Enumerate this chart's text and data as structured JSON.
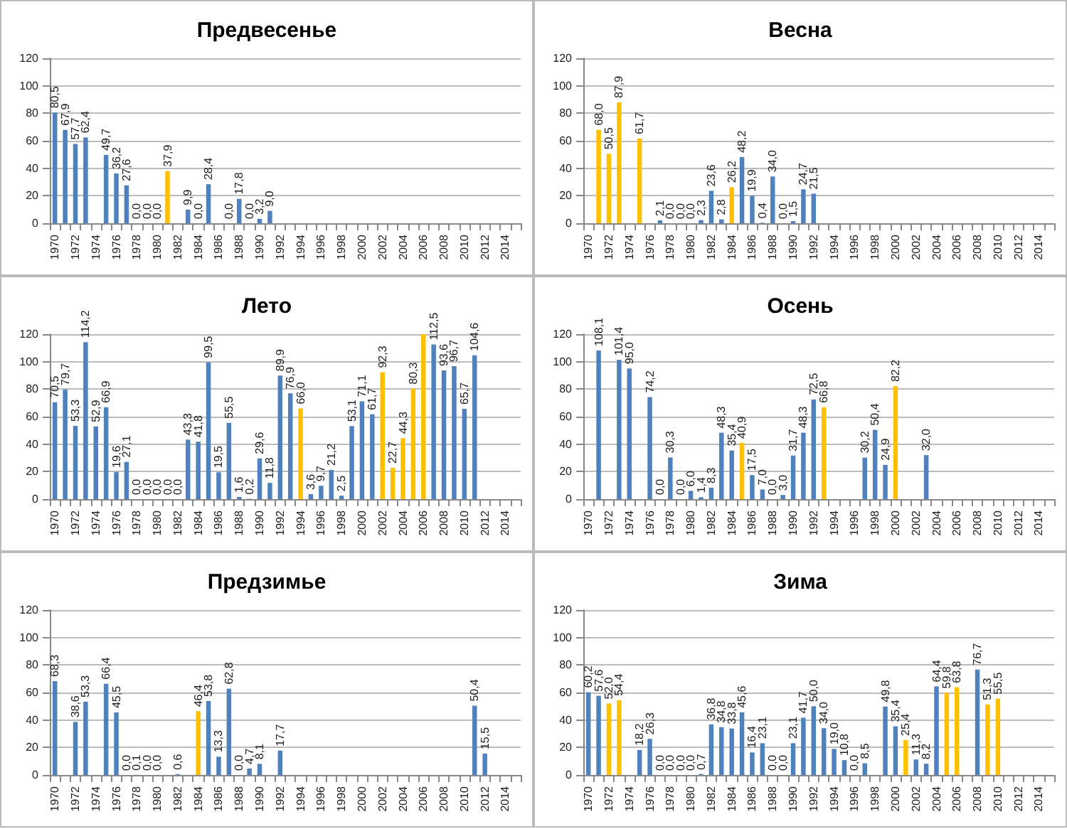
{
  "chart_data": [
    {
      "type": "bar",
      "title": "Предвесенье",
      "categories": [
        "1970",
        null,
        "1972",
        null,
        "1974",
        null,
        "1976",
        null,
        "1978",
        null,
        "1980",
        null,
        "1982",
        null,
        "1984",
        null,
        "1986",
        null,
        "1988",
        null,
        "1990",
        null,
        "1992",
        null,
        "1994",
        null,
        "1996",
        null,
        "1998",
        null,
        "2000",
        null,
        "2002",
        null,
        "2004",
        null,
        "2006",
        null,
        "2008",
        null,
        "2010",
        null,
        "2012",
        null,
        "2014",
        null
      ],
      "ylim": [
        0,
        120
      ],
      "yticks": [
        0,
        20,
        40,
        60,
        80,
        100,
        120
      ],
      "grid": "y",
      "series": [
        {
          "values": [
            80.5,
            67.9,
            57.7,
            62.4,
            null,
            49.7,
            36.2,
            27.6,
            0,
            0,
            0,
            37.9,
            null,
            9.9,
            0,
            28.4,
            null,
            0,
            17.8,
            0,
            3.2,
            9.0,
            null,
            null,
            null,
            null,
            null,
            null,
            null,
            null,
            null,
            null,
            null,
            null,
            null,
            null,
            null,
            null,
            null,
            null,
            null,
            null,
            null,
            null,
            null,
            null
          ],
          "value_labels": [
            "80,5",
            "67,9",
            "57,7",
            "62,4",
            null,
            "49,7",
            "36,2",
            "27,6",
            "0,0",
            "0,0",
            "0,0",
            "37,9",
            null,
            "9,9",
            "0,0",
            "28,4",
            null,
            "0,0",
            "17,8",
            "0,0",
            "3,2",
            "9,0",
            null,
            null,
            null,
            null,
            null,
            null,
            null,
            null,
            null,
            null,
            null,
            null,
            null,
            null,
            null,
            null,
            null,
            null,
            null,
            null,
            null,
            null,
            null,
            null
          ],
          "colors": [
            "#4f81bd",
            "#4f81bd",
            "#4f81bd",
            "#4f81bd",
            null,
            "#4f81bd",
            "#4f81bd",
            "#4f81bd",
            "#4f81bd",
            "#4f81bd",
            "#4f81bd",
            "#ffc000",
            null,
            "#4f81bd",
            "#4f81bd",
            "#4f81bd",
            null,
            "#4f81bd",
            "#4f81bd",
            "#4f81bd",
            "#4f81bd",
            "#4f81bd",
            null,
            null,
            null,
            null,
            null,
            null,
            null,
            null,
            null,
            null,
            null,
            null,
            null,
            null,
            null,
            null,
            null,
            null,
            null,
            null,
            null,
            null,
            null,
            null
          ]
        }
      ]
    },
    {
      "type": "bar",
      "title": "Весна",
      "categories": [
        "1970",
        null,
        "1972",
        null,
        "1974",
        null,
        "1976",
        null,
        "1978",
        null,
        "1980",
        null,
        "1982",
        null,
        "1984",
        null,
        "1986",
        null,
        "1988",
        null,
        "1990",
        null,
        "1992",
        null,
        "1994",
        null,
        "1996",
        null,
        "1998",
        null,
        "2000",
        null,
        "2002",
        null,
        "2004",
        null,
        "2006",
        null,
        "2008",
        null,
        "2010",
        null,
        "2012",
        null,
        "2014",
        null
      ],
      "ylim": [
        0,
        120
      ],
      "yticks": [
        0,
        20,
        40,
        60,
        80,
        100,
        120
      ],
      "grid": "y",
      "series": [
        {
          "values": [
            null,
            68.0,
            50.5,
            87.9,
            null,
            61.7,
            null,
            2.1,
            0,
            0,
            0,
            2.3,
            23.6,
            2.8,
            26.2,
            48.2,
            19.9,
            0.4,
            34.0,
            0,
            1.5,
            24.7,
            21.5,
            null,
            null,
            null,
            null,
            null,
            null,
            null,
            null,
            null,
            null,
            null,
            null,
            null,
            null,
            null,
            null,
            null,
            null,
            null,
            null,
            null,
            null,
            null
          ],
          "value_labels": [
            null,
            "68,0",
            "50,5",
            "87,9",
            null,
            "61,7",
            null,
            "2,1",
            "0,0",
            "0,0",
            "0,0",
            "2,3",
            "23,6",
            "2,8",
            "26,2",
            "48,2",
            "19,9",
            "0,4",
            "34,0",
            "0,0",
            "1,5",
            "24,7",
            "21,5",
            null,
            null,
            null,
            null,
            null,
            null,
            null,
            null,
            null,
            null,
            null,
            null,
            null,
            null,
            null,
            null,
            null,
            null,
            null,
            null,
            null,
            null,
            null
          ],
          "colors": [
            null,
            "#ffc000",
            "#ffc000",
            "#ffc000",
            null,
            "#ffc000",
            null,
            "#4f81bd",
            "#4f81bd",
            "#4f81bd",
            "#4f81bd",
            "#4f81bd",
            "#4f81bd",
            "#4f81bd",
            "#ffc000",
            "#4f81bd",
            "#4f81bd",
            "#4f81bd",
            "#4f81bd",
            "#4f81bd",
            "#4f81bd",
            "#4f81bd",
            "#4f81bd",
            null,
            null,
            null,
            null,
            null,
            null,
            null,
            null,
            null,
            null,
            null,
            null,
            null,
            null,
            null,
            null,
            null,
            null,
            null,
            null,
            null,
            null,
            null
          ]
        }
      ]
    },
    {
      "type": "bar",
      "title": "Лето",
      "categories": [
        "1970",
        null,
        "1972",
        null,
        "1974",
        null,
        "1976",
        null,
        "1978",
        null,
        "1980",
        null,
        "1982",
        null,
        "1984",
        null,
        "1986",
        null,
        "1988",
        null,
        "1990",
        null,
        "1992",
        null,
        "1994",
        null,
        "1996",
        null,
        "1998",
        null,
        "2000",
        null,
        "2002",
        null,
        "2004",
        null,
        "2006",
        null,
        "2008",
        null,
        "2010",
        null,
        "2012",
        null,
        "2014",
        null
      ],
      "ylim": [
        0,
        120
      ],
      "yticks": [
        0,
        20,
        40,
        60,
        80,
        100,
        120
      ],
      "grid": "y",
      "series": [
        {
          "values": [
            70.5,
            79.7,
            53.3,
            114.2,
            52.9,
            66.9,
            19.6,
            27.1,
            0,
            0,
            0,
            0,
            0,
            43.3,
            41.8,
            99.5,
            19.5,
            55.5,
            1.6,
            0.2,
            29.6,
            11.8,
            89.9,
            76.9,
            66.0,
            3.6,
            9.7,
            21.2,
            2.5,
            53.1,
            71.1,
            61.7,
            92.3,
            22.7,
            44.3,
            80.3,
            120,
            112.5,
            93.6,
            96.7,
            65.7,
            104.6,
            null,
            null,
            null,
            null
          ],
          "value_labels": [
            "70,5",
            "79,7",
            "53,3",
            "114,2",
            "52,9",
            "66,9",
            "19,6",
            "27,1",
            "0,0",
            "0,0",
            "0,0",
            "0,0",
            "0,0",
            "43,3",
            "41,8",
            "99,5",
            "19,5",
            "55,5",
            "1,6",
            "0,2",
            "29,6",
            "11,8",
            "89,9",
            "76,9",
            "66,0",
            "3,6",
            "9,7",
            "21,2",
            "2,5",
            "53,1",
            "71,1",
            "61,7",
            "92,3",
            "22,7",
            "44,3",
            "80,3",
            null,
            "112,5",
            "93,6",
            "96,7",
            "65,7",
            "104,6",
            null,
            null,
            null,
            null
          ],
          "colors": [
            "#4f81bd",
            "#4f81bd",
            "#4f81bd",
            "#4f81bd",
            "#4f81bd",
            "#4f81bd",
            "#4f81bd",
            "#4f81bd",
            "#4f81bd",
            "#4f81bd",
            "#4f81bd",
            "#4f81bd",
            "#4f81bd",
            "#4f81bd",
            "#4f81bd",
            "#4f81bd",
            "#4f81bd",
            "#4f81bd",
            "#4f81bd",
            "#4f81bd",
            "#4f81bd",
            "#4f81bd",
            "#4f81bd",
            "#4f81bd",
            "#ffc000",
            "#4f81bd",
            "#4f81bd",
            "#4f81bd",
            "#4f81bd",
            "#4f81bd",
            "#4f81bd",
            "#4f81bd",
            "#ffc000",
            "#ffc000",
            "#ffc000",
            "#ffc000",
            "#ffc000",
            "#4f81bd",
            "#4f81bd",
            "#4f81bd",
            "#4f81bd",
            "#4f81bd",
            null,
            null,
            null,
            null
          ]
        }
      ]
    },
    {
      "type": "bar",
      "title": "Осень",
      "categories": [
        "1970",
        null,
        "1972",
        null,
        "1974",
        null,
        "1976",
        null,
        "1978",
        null,
        "1980",
        null,
        "1982",
        null,
        "1984",
        null,
        "1986",
        null,
        "1988",
        null,
        "1990",
        null,
        "1992",
        null,
        "1994",
        null,
        "1996",
        null,
        "1998",
        null,
        "2000",
        null,
        "2002",
        null,
        "2004",
        null,
        "2006",
        null,
        "2008",
        null,
        "2010",
        null,
        "2012",
        null,
        "2014",
        null
      ],
      "ylim": [
        0,
        120
      ],
      "yticks": [
        0,
        20,
        40,
        60,
        80,
        100,
        120
      ],
      "grid": "y",
      "series": [
        {
          "values": [
            null,
            108.1,
            null,
            101.4,
            95.0,
            null,
            74.2,
            0,
            30.3,
            0,
            6.0,
            1.4,
            8.3,
            48.3,
            35.4,
            40.9,
            17.5,
            7.0,
            0,
            3.0,
            31.7,
            48.3,
            72.5,
            66.8,
            null,
            null,
            null,
            30.2,
            50.4,
            24.9,
            82.2,
            null,
            null,
            32.0,
            null,
            null,
            null,
            null,
            null,
            null,
            null,
            null,
            null,
            null,
            null,
            null
          ],
          "value_labels": [
            null,
            "108,1",
            null,
            "101,4",
            "95,0",
            null,
            "74,2",
            "0,0",
            "30,3",
            "0,0",
            "6,0",
            "1,4",
            "8,3",
            "48,3",
            "35,4",
            "40,9",
            "17,5",
            "7,0",
            "0,0",
            "3,0",
            "31,7",
            "48,3",
            "72,5",
            "66,8",
            null,
            null,
            null,
            "30,2",
            "50,4",
            "24,9",
            "82,2",
            null,
            null,
            "32,0",
            null,
            null,
            null,
            null,
            null,
            null,
            null,
            null,
            null,
            null,
            null,
            null
          ],
          "colors": [
            null,
            "#4f81bd",
            null,
            "#4f81bd",
            "#4f81bd",
            null,
            "#4f81bd",
            "#4f81bd",
            "#4f81bd",
            "#4f81bd",
            "#4f81bd",
            "#4f81bd",
            "#4f81bd",
            "#4f81bd",
            "#4f81bd",
            "#ffc000",
            "#4f81bd",
            "#4f81bd",
            "#4f81bd",
            "#4f81bd",
            "#4f81bd",
            "#4f81bd",
            "#4f81bd",
            "#ffc000",
            null,
            null,
            null,
            "#4f81bd",
            "#4f81bd",
            "#4f81bd",
            "#ffc000",
            null,
            null,
            "#4f81bd",
            null,
            null,
            null,
            null,
            null,
            null,
            null,
            null,
            null,
            null,
            null,
            null
          ]
        }
      ]
    },
    {
      "type": "bar",
      "title": "Предзимье",
      "categories": [
        "1970",
        null,
        "1972",
        null,
        "1974",
        null,
        "1976",
        null,
        "1978",
        null,
        "1980",
        null,
        "1982",
        null,
        "1984",
        null,
        "1986",
        null,
        "1988",
        null,
        "1990",
        null,
        "1992",
        null,
        "1994",
        null,
        "1996",
        null,
        "1998",
        null,
        "2000",
        null,
        "2002",
        null,
        "2004",
        null,
        "2006",
        null,
        "2008",
        null,
        "2010",
        null,
        "2012",
        null,
        "2014",
        null
      ],
      "ylim": [
        0,
        120
      ],
      "yticks": [
        0,
        20,
        40,
        60,
        80,
        100,
        120
      ],
      "grid": "y",
      "series": [
        {
          "values": [
            68.3,
            null,
            38.6,
            53.3,
            null,
            66.4,
            45.5,
            0,
            0.1,
            0,
            0,
            null,
            0.6,
            null,
            46.4,
            53.8,
            13.3,
            62.8,
            0,
            4.7,
            8.1,
            null,
            17.7,
            null,
            null,
            null,
            null,
            null,
            null,
            null,
            null,
            null,
            null,
            null,
            null,
            null,
            null,
            null,
            null,
            null,
            null,
            50.4,
            15.5,
            null,
            null,
            null
          ],
          "value_labels": [
            "68,3",
            null,
            "38,6",
            "53,3",
            null,
            "66,4",
            "45,5",
            "0,0",
            "0,1",
            "0,0",
            "0,0",
            null,
            "0,6",
            null,
            "46,4",
            "53,8",
            "13,3",
            "62,8",
            "0,0",
            "4,7",
            "8,1",
            null,
            "17,7",
            null,
            null,
            null,
            null,
            null,
            null,
            null,
            null,
            null,
            null,
            null,
            null,
            null,
            null,
            null,
            null,
            null,
            null,
            "50,4",
            "15,5",
            null,
            null,
            null
          ],
          "colors": [
            "#4f81bd",
            null,
            "#4f81bd",
            "#4f81bd",
            null,
            "#4f81bd",
            "#4f81bd",
            "#4f81bd",
            "#4f81bd",
            "#4f81bd",
            "#4f81bd",
            null,
            "#4f81bd",
            null,
            "#ffc000",
            "#4f81bd",
            "#4f81bd",
            "#4f81bd",
            "#4f81bd",
            "#4f81bd",
            "#4f81bd",
            null,
            "#4f81bd",
            null,
            null,
            null,
            null,
            null,
            null,
            null,
            null,
            null,
            null,
            null,
            null,
            null,
            null,
            null,
            null,
            null,
            null,
            "#4f81bd",
            "#4f81bd",
            null,
            null,
            null
          ]
        }
      ]
    },
    {
      "type": "bar",
      "title": "Зима",
      "categories": [
        "1970",
        null,
        "1972",
        null,
        "1974",
        null,
        "1976",
        null,
        "1978",
        null,
        "1980",
        null,
        "1982",
        null,
        "1984",
        null,
        "1986",
        null,
        "1988",
        null,
        "1990",
        null,
        "1992",
        null,
        "1994",
        null,
        "1996",
        null,
        "1998",
        null,
        "2000",
        null,
        "2002",
        null,
        "2004",
        null,
        "2006",
        null,
        "2008",
        null,
        "2010",
        null,
        "2012",
        null,
        "2014",
        null
      ],
      "ylim": [
        0,
        120
      ],
      "yticks": [
        0,
        20,
        40,
        60,
        80,
        100,
        120
      ],
      "grid": "y",
      "series": [
        {
          "values": [
            60.2,
            57.6,
            52.0,
            54.4,
            null,
            18.2,
            26.3,
            0,
            0,
            0,
            0,
            0.7,
            36.8,
            34.8,
            33.8,
            45.6,
            16.4,
            23.1,
            0,
            0,
            23.1,
            41.7,
            50.0,
            34.0,
            19.0,
            10.8,
            0,
            8.5,
            null,
            49.8,
            35.4,
            25.4,
            11.3,
            8.2,
            64.4,
            59.8,
            63.8,
            null,
            76.7,
            51.3,
            55.5,
            null,
            null,
            null,
            null,
            null
          ],
          "value_labels": [
            "60,2",
            "57,6",
            "52,0",
            "54,4",
            null,
            "18,2",
            "26,3",
            "0,0",
            "0,0",
            "0,0",
            "0,0",
            "0,7",
            "36,8",
            "34,8",
            "33,8",
            "45,6",
            "16,4",
            "23,1",
            "0,0",
            "0,0",
            "23,1",
            "41,7",
            "50,0",
            "34,0",
            "19,0",
            "10,8",
            "0,0",
            "8,5",
            null,
            "49,8",
            "35,4",
            "25,4",
            "11,3",
            "8,2",
            "64,4",
            "59,8",
            "63,8",
            null,
            "76,7",
            "51,3",
            "55,5",
            null,
            null,
            null,
            null,
            null
          ],
          "colors": [
            "#4f81bd",
            "#4f81bd",
            "#ffc000",
            "#ffc000",
            null,
            "#4f81bd",
            "#4f81bd",
            "#4f81bd",
            "#4f81bd",
            "#4f81bd",
            "#4f81bd",
            "#4f81bd",
            "#4f81bd",
            "#4f81bd",
            "#4f81bd",
            "#4f81bd",
            "#4f81bd",
            "#4f81bd",
            "#4f81bd",
            "#4f81bd",
            "#4f81bd",
            "#4f81bd",
            "#4f81bd",
            "#4f81bd",
            "#4f81bd",
            "#4f81bd",
            "#4f81bd",
            "#4f81bd",
            null,
            "#4f81bd",
            "#4f81bd",
            "#ffc000",
            "#4f81bd",
            "#4f81bd",
            "#4f81bd",
            "#ffc000",
            "#ffc000",
            null,
            "#4f81bd",
            "#ffc000",
            "#ffc000",
            null,
            null,
            null,
            null,
            null
          ]
        }
      ]
    }
  ]
}
